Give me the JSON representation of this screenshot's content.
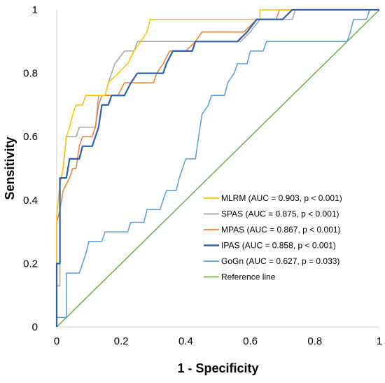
{
  "chart_data": {
    "type": "line",
    "title": "",
    "xlabel": "1 - Specificity",
    "ylabel": "Sensitivity",
    "xlim": [
      0,
      1
    ],
    "ylim": [
      0,
      1
    ],
    "x_ticks": [
      "0",
      "0.2",
      "0.4",
      "0.6",
      "0.8",
      "1"
    ],
    "y_ticks": [
      "0",
      "0.2",
      "0.4",
      "0.6",
      "0.8",
      "1"
    ],
    "grid": false,
    "legend_position": "bottom-right (inside)",
    "series": [
      {
        "name": "MLRM (AUC = 0.903, p < 0.001)",
        "color": "#FFC000",
        "points": [
          [
            0,
            0
          ],
          [
            0,
            0.35
          ],
          [
            0.01,
            0.45
          ],
          [
            0.02,
            0.5
          ],
          [
            0.03,
            0.6
          ],
          [
            0.04,
            0.63
          ],
          [
            0.05,
            0.67
          ],
          [
            0.06,
            0.7
          ],
          [
            0.08,
            0.7
          ],
          [
            0.09,
            0.73
          ],
          [
            0.15,
            0.73
          ],
          [
            0.16,
            0.77
          ],
          [
            0.19,
            0.8
          ],
          [
            0.22,
            0.83
          ],
          [
            0.24,
            0.87
          ],
          [
            0.26,
            0.9
          ],
          [
            0.28,
            0.93
          ],
          [
            0.29,
            0.97
          ],
          [
            0.35,
            0.97
          ],
          [
            0.36,
            0.97
          ],
          [
            0.63,
            0.97
          ],
          [
            0.63,
            1
          ],
          [
            1,
            1
          ]
        ]
      },
      {
        "name": "SPAS (AUC = 0.875, p < 0.001)",
        "color": "#A5A5A5",
        "points": [
          [
            0,
            0
          ],
          [
            0,
            0.13
          ],
          [
            0.01,
            0.13
          ],
          [
            0.01,
            0.45
          ],
          [
            0.02,
            0.5
          ],
          [
            0.03,
            0.6
          ],
          [
            0.06,
            0.6
          ],
          [
            0.07,
            0.63
          ],
          [
            0.12,
            0.63
          ],
          [
            0.13,
            0.73
          ],
          [
            0.15,
            0.73
          ],
          [
            0.16,
            0.77
          ],
          [
            0.17,
            0.8
          ],
          [
            0.18,
            0.83
          ],
          [
            0.21,
            0.87
          ],
          [
            0.24,
            0.87
          ],
          [
            0.25,
            0.9
          ],
          [
            0.42,
            0.9
          ],
          [
            0.57,
            0.9
          ],
          [
            0.6,
            0.93
          ],
          [
            0.63,
            0.97
          ],
          [
            0.73,
            0.97
          ],
          [
            0.74,
            1
          ],
          [
            1,
            1
          ]
        ]
      },
      {
        "name": "MPAS (AUC = 0.867, p < 0.001)",
        "color": "#ED7D31",
        "points": [
          [
            0,
            0
          ],
          [
            0,
            0.33
          ],
          [
            0.01,
            0.37
          ],
          [
            0.02,
            0.43
          ],
          [
            0.04,
            0.47
          ],
          [
            0.05,
            0.5
          ],
          [
            0.06,
            0.5
          ],
          [
            0.07,
            0.57
          ],
          [
            0.08,
            0.6
          ],
          [
            0.11,
            0.6
          ],
          [
            0.12,
            0.63
          ],
          [
            0.13,
            0.7
          ],
          [
            0.14,
            0.73
          ],
          [
            0.19,
            0.73
          ],
          [
            0.21,
            0.77
          ],
          [
            0.3,
            0.77
          ],
          [
            0.31,
            0.8
          ],
          [
            0.33,
            0.83
          ],
          [
            0.35,
            0.87
          ],
          [
            0.4,
            0.87
          ],
          [
            0.43,
            0.9
          ],
          [
            0.45,
            0.93
          ],
          [
            0.55,
            0.93
          ],
          [
            0.58,
            0.93
          ],
          [
            0.62,
            0.97
          ],
          [
            0.68,
            0.97
          ],
          [
            0.69,
            1
          ],
          [
            1,
            1
          ]
        ]
      },
      {
        "name": "IPAS (AUC = 0.858, p < 0.001)",
        "color": "#2F5FAC",
        "points": [
          [
            0,
            0
          ],
          [
            0,
            0.2
          ],
          [
            0.01,
            0.2
          ],
          [
            0.01,
            0.47
          ],
          [
            0.03,
            0.47
          ],
          [
            0.04,
            0.53
          ],
          [
            0.07,
            0.53
          ],
          [
            0.08,
            0.57
          ],
          [
            0.11,
            0.57
          ],
          [
            0.12,
            0.6
          ],
          [
            0.13,
            0.63
          ],
          [
            0.14,
            0.7
          ],
          [
            0.16,
            0.7
          ],
          [
            0.17,
            0.73
          ],
          [
            0.21,
            0.73
          ],
          [
            0.23,
            0.77
          ],
          [
            0.25,
            0.8
          ],
          [
            0.33,
            0.8
          ],
          [
            0.34,
            0.83
          ],
          [
            0.36,
            0.87
          ],
          [
            0.42,
            0.87
          ],
          [
            0.43,
            0.9
          ],
          [
            0.56,
            0.9
          ],
          [
            0.59,
            0.93
          ],
          [
            0.62,
            0.97
          ],
          [
            0.7,
            0.97
          ],
          [
            0.73,
            1
          ],
          [
            1,
            1
          ]
        ]
      },
      {
        "name": "GoGn (AUC = 0.627, p = 0.033)",
        "color": "#5B9BD5",
        "points": [
          [
            0,
            0
          ],
          [
            0,
            0.03
          ],
          [
            0.03,
            0.03
          ],
          [
            0.03,
            0.17
          ],
          [
            0.07,
            0.17
          ],
          [
            0.08,
            0.2
          ],
          [
            0.09,
            0.23
          ],
          [
            0.1,
            0.27
          ],
          [
            0.14,
            0.27
          ],
          [
            0.15,
            0.3
          ],
          [
            0.22,
            0.3
          ],
          [
            0.23,
            0.33
          ],
          [
            0.27,
            0.33
          ],
          [
            0.28,
            0.37
          ],
          [
            0.32,
            0.37
          ],
          [
            0.33,
            0.4
          ],
          [
            0.34,
            0.43
          ],
          [
            0.37,
            0.43
          ],
          [
            0.38,
            0.47
          ],
          [
            0.4,
            0.53
          ],
          [
            0.43,
            0.53
          ],
          [
            0.44,
            0.6
          ],
          [
            0.45,
            0.67
          ],
          [
            0.47,
            0.7
          ],
          [
            0.48,
            0.73
          ],
          [
            0.52,
            0.73
          ],
          [
            0.53,
            0.77
          ],
          [
            0.55,
            0.8
          ],
          [
            0.56,
            0.83
          ],
          [
            0.59,
            0.83
          ],
          [
            0.6,
            0.87
          ],
          [
            0.64,
            0.87
          ],
          [
            0.65,
            0.9
          ],
          [
            0.9,
            0.9
          ],
          [
            0.91,
            0.93
          ],
          [
            0.92,
            0.97
          ],
          [
            0.96,
            0.97
          ],
          [
            0.97,
            1
          ],
          [
            1,
            1
          ]
        ]
      },
      {
        "name": "Reference line",
        "color": "#70AD47",
        "points": [
          [
            0,
            0
          ],
          [
            1,
            1
          ]
        ]
      }
    ]
  }
}
